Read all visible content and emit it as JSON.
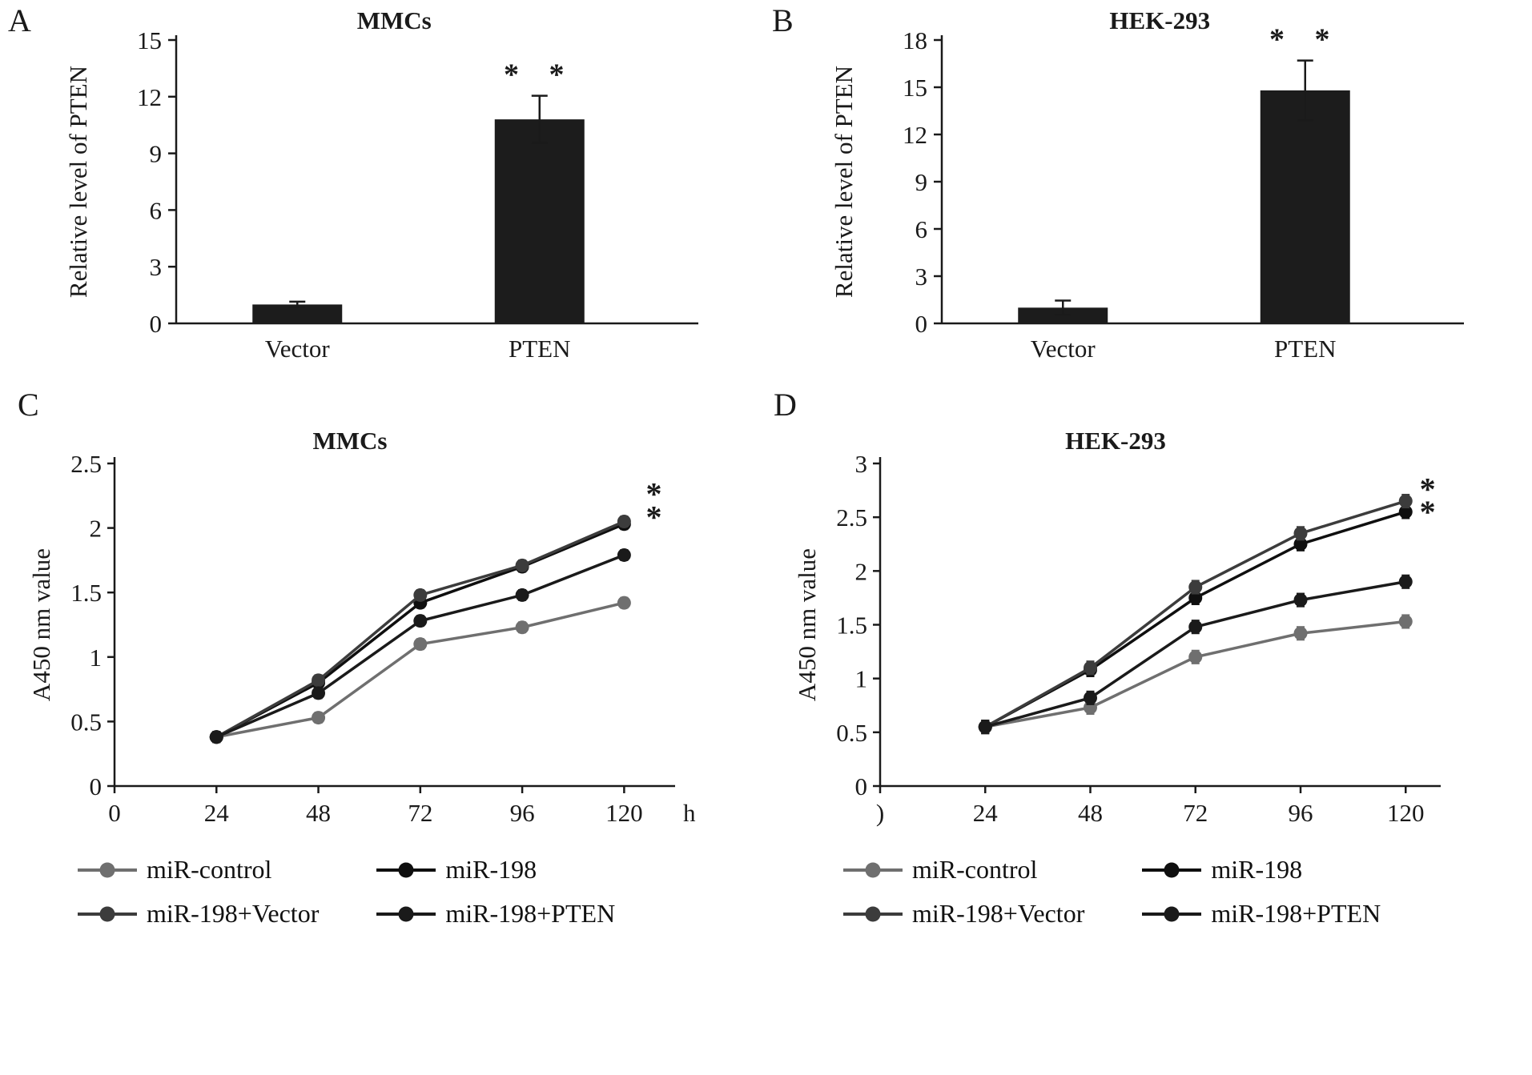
{
  "chart_data": [
    {
      "panel_label": "A",
      "type": "bar",
      "title": "MMCs",
      "ylabel": "Relative level of PTEN",
      "categories": [
        "Vector",
        "PTEN"
      ],
      "values": [
        1.0,
        10.8
      ],
      "errors": [
        0.15,
        1.25
      ],
      "sig_labels": [
        "",
        "* *"
      ],
      "ylim": [
        0,
        15
      ],
      "yticks": [
        0,
        3,
        6,
        9,
        12,
        15
      ],
      "bar_color": "#1c1c1c"
    },
    {
      "panel_label": "B",
      "type": "bar",
      "title": "HEK-293",
      "ylabel": "Relative level of PTEN",
      "categories": [
        "Vector",
        "PTEN"
      ],
      "values": [
        1.0,
        14.8
      ],
      "errors": [
        0.45,
        1.9
      ],
      "sig_labels": [
        "",
        "* *"
      ],
      "ylim": [
        0,
        18
      ],
      "yticks": [
        0,
        3,
        6,
        9,
        12,
        15,
        18
      ],
      "bar_color": "#1c1c1c"
    },
    {
      "panel_label": "C",
      "type": "line",
      "title": "MMCs",
      "ylabel": "A450 nm value",
      "x_unit": "h",
      "x": [
        24,
        48,
        72,
        96,
        120
      ],
      "xticks": [
        {
          "value": 0,
          "label": "0"
        },
        {
          "value": 24,
          "label": "24"
        },
        {
          "value": 48,
          "label": "48"
        },
        {
          "value": 72,
          "label": "72"
        },
        {
          "value": 96,
          "label": "96"
        },
        {
          "value": 120,
          "label": "120"
        }
      ],
      "x_axis_max": 132,
      "ylim": [
        0,
        2.5
      ],
      "yticks": [
        0,
        0.5,
        1,
        1.5,
        2,
        2.5
      ],
      "point_error": 0.04,
      "series": [
        {
          "name": "miR-control",
          "color": "#6f6f6f",
          "values": [
            0.38,
            0.53,
            1.1,
            1.23,
            1.42
          ]
        },
        {
          "name": "miR-198",
          "color": "#0f0f0f",
          "values": [
            0.38,
            0.8,
            1.42,
            1.7,
            2.03
          ]
        },
        {
          "name": "miR-198+Vector",
          "color": "#3c3c3c",
          "values": [
            0.38,
            0.82,
            1.48,
            1.71,
            2.05
          ]
        },
        {
          "name": "miR-198+PTEN",
          "color": "#1a1a1a",
          "values": [
            0.38,
            0.72,
            1.28,
            1.48,
            1.79
          ]
        }
      ],
      "annotations": [
        {
          "text": "*",
          "x": 127,
          "y": 2.18
        },
        {
          "text": "*",
          "x": 127,
          "y": 2.0
        }
      ]
    },
    {
      "panel_label": "D",
      "type": "line",
      "title": "HEK-293",
      "ylabel": "A450 nm value",
      "x_unit": "",
      "x": [
        24,
        48,
        72,
        96,
        120
      ],
      "xticks": [
        {
          "value": 0,
          "label": ")"
        },
        {
          "value": 24,
          "label": "24"
        },
        {
          "value": 48,
          "label": "48"
        },
        {
          "value": 72,
          "label": "72"
        },
        {
          "value": 96,
          "label": "96"
        },
        {
          "value": 120,
          "label": "120"
        }
      ],
      "x_axis_max": 128,
      "ylim": [
        0,
        3
      ],
      "yticks": [
        0,
        0.5,
        1,
        1.5,
        2,
        2.5,
        3
      ],
      "point_error": 0.06,
      "series": [
        {
          "name": "miR-control",
          "color": "#6f6f6f",
          "values": [
            0.55,
            0.73,
            1.2,
            1.42,
            1.53
          ]
        },
        {
          "name": "miR-198",
          "color": "#0f0f0f",
          "values": [
            0.55,
            1.08,
            1.75,
            2.25,
            2.55
          ]
        },
        {
          "name": "miR-198+Vector",
          "color": "#3c3c3c",
          "values": [
            0.55,
            1.1,
            1.85,
            2.35,
            2.65
          ]
        },
        {
          "name": "miR-198+PTEN",
          "color": "#1a1a1a",
          "values": [
            0.55,
            0.82,
            1.48,
            1.73,
            1.9
          ]
        }
      ],
      "annotations": [
        {
          "text": "*",
          "x": 125,
          "y": 2.66
        },
        {
          "text": "*",
          "x": 125,
          "y": 2.45
        }
      ]
    }
  ]
}
